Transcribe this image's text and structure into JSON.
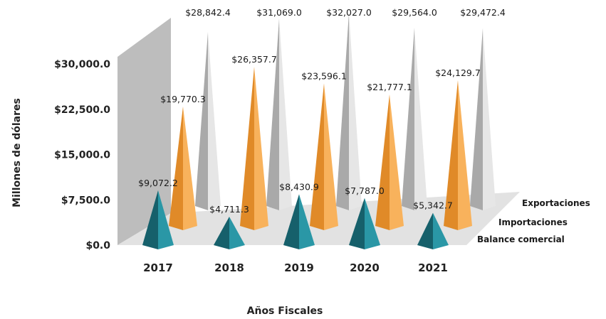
{
  "chart_data": {
    "type": "bar",
    "style": "3d-cone",
    "title": "",
    "xlabel": "Años Fiscales",
    "ylabel": "Millones de dólares",
    "ylim": [
      0,
      30000
    ],
    "yticks": [
      "$0.0",
      "$7,500.0",
      "$15,000.0",
      "$22,500.0",
      "$30,000.0"
    ],
    "ytick_values": [
      0,
      7500,
      15000,
      22500,
      30000
    ],
    "categories": [
      "2017",
      "2018",
      "2019",
      "2020",
      "2021"
    ],
    "series": [
      {
        "name": "Balance comercial",
        "color": "#1f7f8c",
        "values": [
          9072.2,
          4711.3,
          8430.9,
          7787.0,
          5342.7
        ],
        "labels": [
          "$9,072.2",
          "$4,711.3",
          "$8,430.9",
          "$7,787.0",
          "$5,342.7"
        ]
      },
      {
        "name": "Importaciones",
        "color": "#f5a347",
        "values": [
          19770.3,
          26357.7,
          23596.1,
          21777.1,
          24129.7
        ],
        "labels": [
          "$19,770.3",
          "$26,357.7",
          "$23,596.1",
          "$21,777.1",
          "$24,129.7"
        ]
      },
      {
        "name": "Exportaciones",
        "color": "#c9c9c9",
        "values": [
          28842.4,
          31069.0,
          32027.0,
          29564.0,
          29472.4
        ],
        "labels": [
          "$28,842.4",
          "$31,069.0",
          "$32,027.0",
          "$29,564.0",
          "$29,472.4"
        ]
      }
    ],
    "grid": false,
    "legend": "right (depth labels)"
  }
}
